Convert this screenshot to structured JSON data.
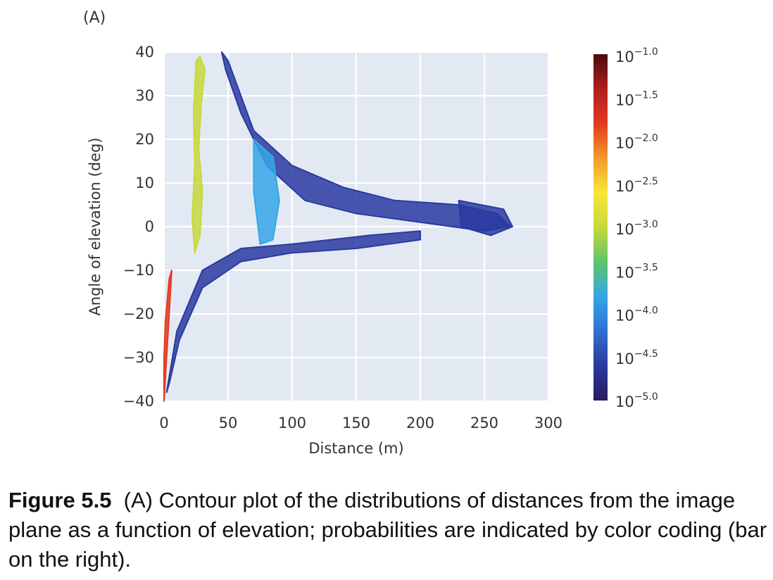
{
  "panel_label": "(A)",
  "caption": {
    "figure_label": "Figure 5.5",
    "text": "(A) Contour plot of the distributions of distances from the image plane as a function of elevation; probabilities are indicated by color coding (bar on the right)."
  },
  "chart_data": {
    "type": "heatmap",
    "title": "",
    "xlabel": "Distance (m)",
    "ylabel": "Angle of elevation (deg)",
    "xlim": [
      0,
      300
    ],
    "ylim": [
      -40,
      40
    ],
    "x_ticks": [
      "0",
      "50",
      "100",
      "150",
      "200",
      "250",
      "300"
    ],
    "y_ticks": [
      "40",
      "30",
      "20",
      "10",
      "0",
      "−10",
      "−20",
      "−30",
      "−40"
    ],
    "grid": true,
    "colorbar": {
      "scale": "log",
      "range": [
        -5.0,
        -1.0
      ],
      "labels": [
        {
          "base": "10",
          "exp": "−1.0"
        },
        {
          "base": "10",
          "exp": "−1.5"
        },
        {
          "base": "10",
          "exp": "−2.0"
        },
        {
          "base": "10",
          "exp": "−2.5"
        },
        {
          "base": "10",
          "exp": "−3.0"
        },
        {
          "base": "10",
          "exp": "−3.5"
        },
        {
          "base": "10",
          "exp": "−4.0"
        },
        {
          "base": "10",
          "exp": "−4.5"
        },
        {
          "base": "10",
          "exp": "−5.0"
        }
      ],
      "colormap": [
        "#2a1a5e",
        "#2a3aa0",
        "#2f6fd0",
        "#36a6e8",
        "#5dc46a",
        "#c8d83a",
        "#f6e63a",
        "#f39a2a",
        "#e23a1e",
        "#b01e1e",
        "#4a0c0c"
      ]
    },
    "regions": [
      {
        "name": "near green band",
        "level": "10^-3",
        "points": [
          [
            25,
            38
          ],
          [
            28,
            39
          ],
          [
            32,
            36
          ],
          [
            29,
            28
          ],
          [
            27,
            18
          ],
          [
            30,
            8
          ],
          [
            28,
            -2
          ],
          [
            24,
            -6
          ],
          [
            22,
            2
          ],
          [
            24,
            14
          ],
          [
            23,
            26
          ]
        ]
      },
      {
        "name": "near-field red strip",
        "level": "10^-2",
        "points": [
          [
            0,
            -40
          ],
          [
            2,
            -30
          ],
          [
            4,
            -20
          ],
          [
            6,
            -10
          ],
          [
            4,
            -12
          ],
          [
            1,
            -22
          ],
          [
            0,
            -30
          ]
        ]
      },
      {
        "name": "upper branch",
        "level": "10^-4.5",
        "points": [
          [
            45,
            40
          ],
          [
            50,
            38
          ],
          [
            70,
            22
          ],
          [
            100,
            14
          ],
          [
            140,
            9
          ],
          [
            180,
            6
          ],
          [
            230,
            5
          ],
          [
            260,
            3
          ],
          [
            270,
            0
          ],
          [
            250,
            -1
          ],
          [
            200,
            1
          ],
          [
            150,
            3
          ],
          [
            110,
            6
          ],
          [
            80,
            14
          ],
          [
            60,
            26
          ],
          [
            48,
            36
          ]
        ]
      },
      {
        "name": "lower branch",
        "level": "10^-4.5",
        "points": [
          [
            2,
            -38
          ],
          [
            10,
            -24
          ],
          [
            30,
            -10
          ],
          [
            60,
            -5
          ],
          [
            100,
            -4
          ],
          [
            160,
            -2
          ],
          [
            200,
            -1
          ],
          [
            200,
            -3
          ],
          [
            150,
            -5
          ],
          [
            100,
            -6
          ],
          [
            60,
            -8
          ],
          [
            30,
            -14
          ],
          [
            12,
            -26
          ],
          [
            4,
            -36
          ]
        ]
      },
      {
        "name": "central blue core",
        "level": "10^-3.8",
        "points": [
          [
            70,
            20
          ],
          [
            85,
            16
          ],
          [
            90,
            6
          ],
          [
            85,
            -3
          ],
          [
            75,
            -4
          ],
          [
            70,
            8
          ]
        ]
      },
      {
        "name": "outer tip",
        "level": "10^-4.8",
        "points": [
          [
            230,
            6
          ],
          [
            265,
            4
          ],
          [
            272,
            0
          ],
          [
            255,
            -2
          ],
          [
            232,
            0
          ]
        ]
      }
    ]
  }
}
